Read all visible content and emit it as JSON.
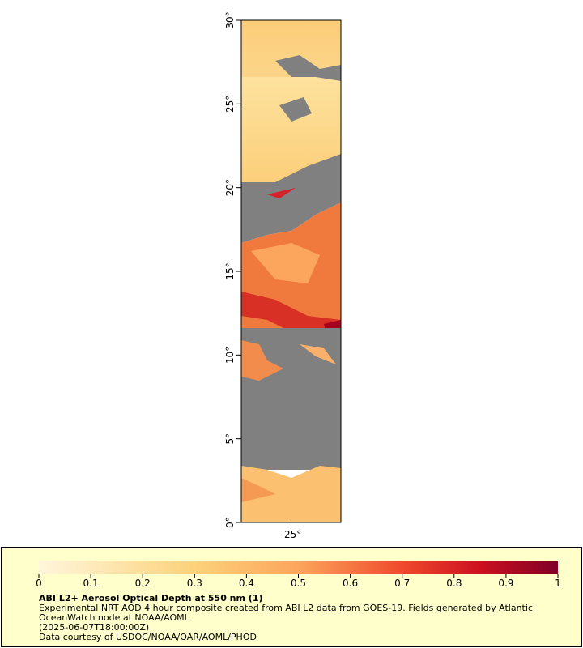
{
  "map": {
    "lat_range": [
      0,
      30
    ],
    "lat_ticks": [
      {
        "value": 0,
        "label": "0°"
      },
      {
        "value": 5,
        "label": "5°"
      },
      {
        "value": 10,
        "label": "10°"
      },
      {
        "value": 15,
        "label": "15°"
      },
      {
        "value": 20,
        "label": "20°"
      },
      {
        "value": 25,
        "label": "25°"
      },
      {
        "value": 30,
        "label": "30°"
      }
    ],
    "lon_range": [
      -28,
      -22
    ],
    "lon_ticks": [
      {
        "value": -25,
        "label": "-25°"
      }
    ]
  },
  "colorbar": {
    "range": [
      0,
      1
    ],
    "ticks": [
      0,
      0.1,
      0.2,
      0.3,
      0.4,
      0.5,
      0.6,
      0.7,
      0.8,
      0.9,
      1
    ]
  },
  "legend": {
    "title": "ABI L2+ Aerosol Optical Depth at 550 nm (1)",
    "description": "Experimental NRT AOD 4 hour composite created from ABI L2 data from GOES-19. Fields generated by Atlantic OceanWatch node at NOAA/AOML",
    "time": "(2025-06-07T18:00:00Z)",
    "credit": "Data courtesy of USDOC/NOAA/OAR/AOML/PHOD"
  }
}
